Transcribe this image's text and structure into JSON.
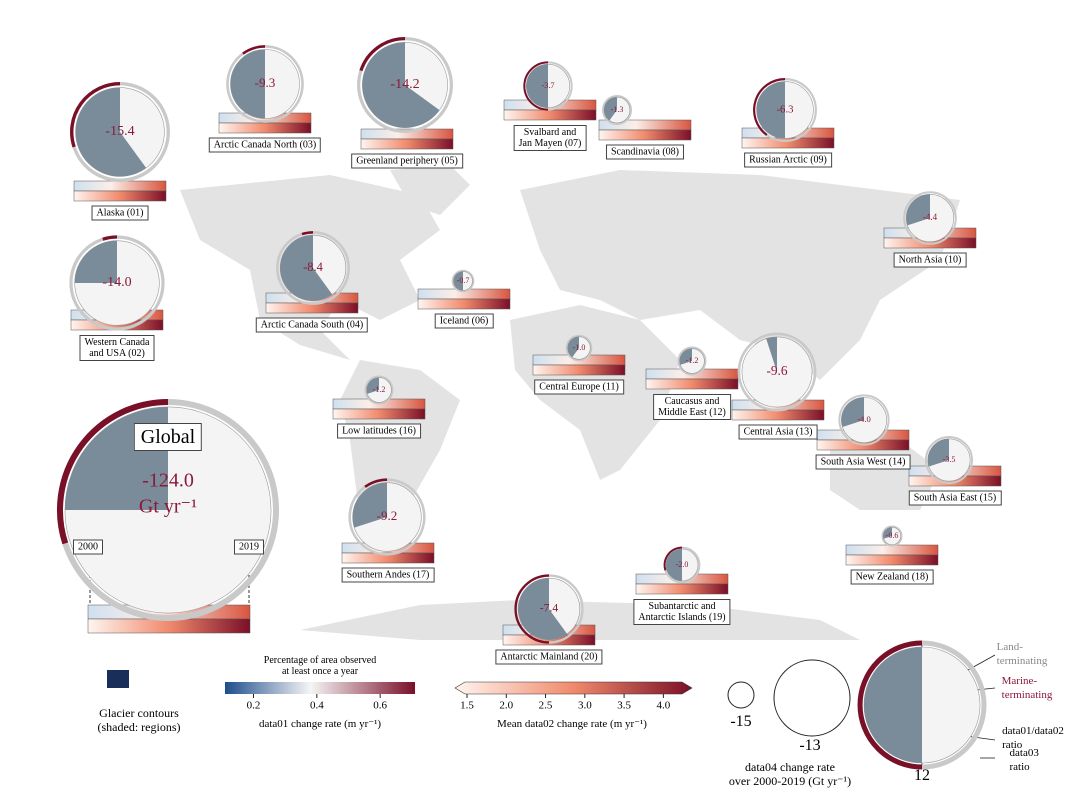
{
  "regions": [
    {
      "name": "Alaska (01)",
      "value": -15.4,
      "label": "-15.4",
      "share": 0.6,
      "marine": 0.3
    },
    {
      "name": "Western Canada\nand USA (02)",
      "value": -14,
      "label": "-14.0",
      "share": 0.25,
      "marine": 0.05
    },
    {
      "name": "Arctic Canada North (03)",
      "value": -9.3,
      "label": "-9.3",
      "share": 0.5,
      "marine": 0.1
    },
    {
      "name": "Arctic Canada South (04)",
      "value": -8.4,
      "label": "-8.4",
      "share": 0.6,
      "marine": 0.05
    },
    {
      "name": "Greenland periphery (05)",
      "value": -14.2,
      "label": "-14.2",
      "share": 0.65,
      "marine": 0.2
    },
    {
      "name": "Iceland (06)",
      "value": -0.7,
      "label": "-0.7",
      "share": 0.5,
      "marine": 0
    },
    {
      "name": "Svalbard and\nJan Mayen (07)",
      "value": -3.7,
      "label": "-3.7",
      "share": 0.5,
      "marine": 0.5
    },
    {
      "name": "Scandinavia (08)",
      "value": -1.3,
      "label": "-1.3",
      "share": 0.4,
      "marine": 0
    },
    {
      "name": "Russian Arctic (09)",
      "value": -6.3,
      "label": "-6.3",
      "share": 0.5,
      "marine": 0.4
    },
    {
      "name": "North Asia (10)",
      "value": -4.4,
      "label": "-4.4",
      "share": 0.3,
      "marine": 0
    },
    {
      "name": "Central Europe (11)",
      "value": -1,
      "label": "-1.0",
      "share": 0.4,
      "marine": 0
    },
    {
      "name": "Caucasus and\nMiddle East (12)",
      "value": -1.2,
      "label": "-1.2",
      "share": 0.3,
      "marine": 0
    },
    {
      "name": "Central Asia (13)",
      "value": -9.6,
      "label": "-9.6",
      "share": 0.05,
      "marine": 0
    },
    {
      "name": "South Asia West (14)",
      "value": -4,
      "label": "-4.0",
      "share": 0.3,
      "marine": 0
    },
    {
      "name": "South Asia East (15)",
      "value": -3.5,
      "label": "-3.5",
      "share": 0.3,
      "marine": 0
    },
    {
      "name": "Low latitudes (16)",
      "value": -1.2,
      "label": "-1.2",
      "share": 0.3,
      "marine": 0
    },
    {
      "name": "Southern Andes (17)",
      "value": -9.2,
      "label": "-9.2",
      "share": 0.3,
      "marine": 0.1
    },
    {
      "name": "New Zealand (18)",
      "value": -0.6,
      "label": "-0.6",
      "share": 0.3,
      "marine": 0
    },
    {
      "name": "Subantarctic and\nAntarctic Islands (19)",
      "value": -2,
      "label": "-2.0",
      "share": 0.5,
      "marine": 0.3
    },
    {
      "name": "Antarctic Mainland (20)",
      "value": -7.4,
      "label": "-7.4",
      "share": 0.6,
      "marine": 0.5
    }
  ],
  "global": {
    "title": "Global",
    "value": -124,
    "label": "-124.0",
    "unit": "Gt yr⁻¹",
    "share": 0.25,
    "marine": 0.3,
    "start": "2000",
    "end": "2019"
  },
  "legend": {
    "contours": "Glacier contours\n(shaded: regions)",
    "observed_title": "Percentage of area observed\nat least once a year",
    "bar1": {
      "label": "data01 change rate (m yr⁻¹)",
      "lim": [
        0.11,
        0.71
      ],
      "ticks": [
        0.2,
        0.4,
        0.6
      ]
    },
    "bar2": {
      "label": "Mean data02 change rate (m yr⁻¹)",
      "lim": [
        1.5,
        4.25
      ],
      "ticks": [
        1.5,
        {
          "value": 2,
          "label": "2.0"
        },
        2.5,
        {
          "value": 3,
          "label": "3.0"
        },
        3.5,
        {
          "value": 4,
          "label": "4.0"
        }
      ]
    },
    "sizes": [
      "-15",
      "-13",
      "12"
    ],
    "size_title": "data04 change rate\nover 2000-2019 (Gt yr⁻¹)",
    "land": "Land-\nterminating",
    "marine": "Marine-\nterminating",
    "ratio1": "data01/data02\nratio",
    "ratio2": "data03 ratio"
  }
}
